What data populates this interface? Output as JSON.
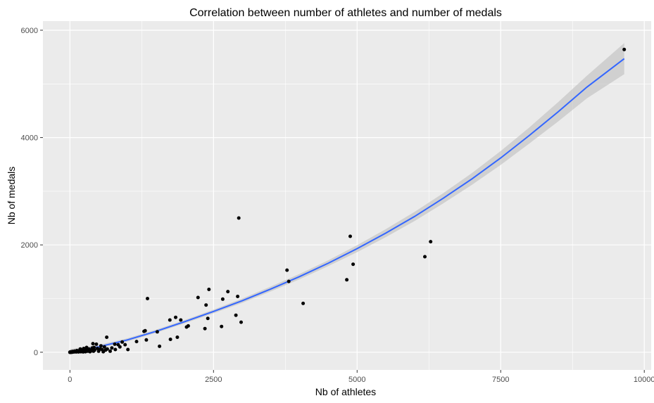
{
  "chart_data": {
    "type": "scatter",
    "title": "Correlation between number of athletes and number of medals",
    "xlabel": "Nb of athletes",
    "ylabel": "Nb of medals",
    "xlim": [
      -470,
      10120
    ],
    "ylim": [
      -330,
      6170
    ],
    "x_ticks": [
      0,
      2500,
      5000,
      7500,
      10000
    ],
    "x_tick_labels": [
      "0",
      "2500",
      "5000",
      "7500",
      "10000"
    ],
    "y_ticks": [
      0,
      2000,
      4000,
      6000
    ],
    "y_tick_labels": [
      "0",
      "2000",
      "4000",
      "6000"
    ],
    "grid": true,
    "colors": {
      "panel": "#EBEBEB",
      "grid": "#FFFFFF",
      "points": "#000000",
      "fit_line": "#3366FF",
      "ribbon": "#BEBEBE"
    },
    "points": [
      [
        9650,
        5640
      ],
      [
        6280,
        2060
      ],
      [
        6180,
        1780
      ],
      [
        4880,
        2160
      ],
      [
        4930,
        1640
      ],
      [
        4820,
        1350
      ],
      [
        3780,
        1530
      ],
      [
        3810,
        1320
      ],
      [
        4060,
        910
      ],
      [
        2940,
        2500
      ],
      [
        2920,
        1040
      ],
      [
        2980,
        560
      ],
      [
        2750,
        1130
      ],
      [
        2660,
        990
      ],
      [
        2640,
        480
      ],
      [
        2890,
        690
      ],
      [
        2420,
        1170
      ],
      [
        2370,
        880
      ],
      [
        2400,
        630
      ],
      [
        2350,
        440
      ],
      [
        2230,
        1020
      ],
      [
        2060,
        490
      ],
      [
        2030,
        470
      ],
      [
        1930,
        600
      ],
      [
        1840,
        650
      ],
      [
        1870,
        280
      ],
      [
        1740,
        600
      ],
      [
        1750,
        240
      ],
      [
        1520,
        380
      ],
      [
        1560,
        110
      ],
      [
        1350,
        1000
      ],
      [
        1310,
        400
      ],
      [
        1330,
        230
      ],
      [
        1290,
        390
      ],
      [
        1160,
        200
      ],
      [
        1010,
        50
      ],
      [
        960,
        140
      ],
      [
        910,
        190
      ],
      [
        840,
        140
      ],
      [
        780,
        150
      ],
      [
        790,
        50
      ],
      [
        730,
        80
      ],
      [
        640,
        280
      ],
      [
        600,
        100
      ],
      [
        620,
        40
      ],
      [
        580,
        10
      ],
      [
        540,
        120
      ],
      [
        530,
        60
      ],
      [
        500,
        20
      ],
      [
        460,
        150
      ],
      [
        430,
        40
      ],
      [
        410,
        20
      ],
      [
        400,
        160
      ],
      [
        390,
        80
      ],
      [
        370,
        30
      ],
      [
        350,
        10
      ],
      [
        330,
        60
      ],
      [
        310,
        20
      ],
      [
        290,
        90
      ],
      [
        280,
        40
      ],
      [
        270,
        10
      ],
      [
        250,
        30
      ],
      [
        240,
        70
      ],
      [
        230,
        5
      ],
      [
        210,
        40
      ],
      [
        200,
        20
      ],
      [
        190,
        10
      ],
      [
        180,
        60
      ],
      [
        160,
        15
      ],
      [
        150,
        5
      ],
      [
        140,
        25
      ],
      [
        130,
        10
      ],
      [
        120,
        30
      ],
      [
        110,
        5
      ],
      [
        100,
        15
      ],
      [
        90,
        8
      ],
      [
        80,
        20
      ],
      [
        70,
        5
      ],
      [
        60,
        10
      ],
      [
        50,
        3
      ],
      [
        45,
        15
      ],
      [
        40,
        5
      ],
      [
        35,
        0
      ],
      [
        30,
        8
      ],
      [
        25,
        2
      ],
      [
        20,
        0
      ],
      [
        15,
        5
      ],
      [
        10,
        0
      ],
      [
        8,
        3
      ],
      [
        5,
        0
      ],
      [
        3,
        0
      ],
      [
        2,
        0
      ],
      [
        1,
        0
      ],
      [
        0,
        0
      ],
      [
        420,
        90
      ],
      [
        480,
        70
      ],
      [
        560,
        50
      ],
      [
        650,
        60
      ],
      [
        700,
        20
      ],
      [
        870,
        100
      ],
      [
        260,
        50
      ],
      [
        320,
        40
      ]
    ],
    "fit_line": {
      "method": "smooth",
      "x": [
        0,
        500,
        1000,
        1500,
        2000,
        2500,
        3000,
        3500,
        4000,
        4500,
        5000,
        5500,
        6000,
        6500,
        7000,
        7500,
        8000,
        8500,
        9000,
        9650
      ],
      "y": [
        15,
        100,
        230,
        390,
        570,
        760,
        960,
        1180,
        1410,
        1660,
        1930,
        2220,
        2530,
        2870,
        3230,
        3620,
        4040,
        4480,
        4940,
        5470
      ],
      "ci_half_width": [
        45,
        35,
        30,
        30,
        30,
        35,
        40,
        45,
        50,
        55,
        65,
        75,
        85,
        95,
        110,
        130,
        150,
        180,
        210,
        290
      ]
    }
  }
}
